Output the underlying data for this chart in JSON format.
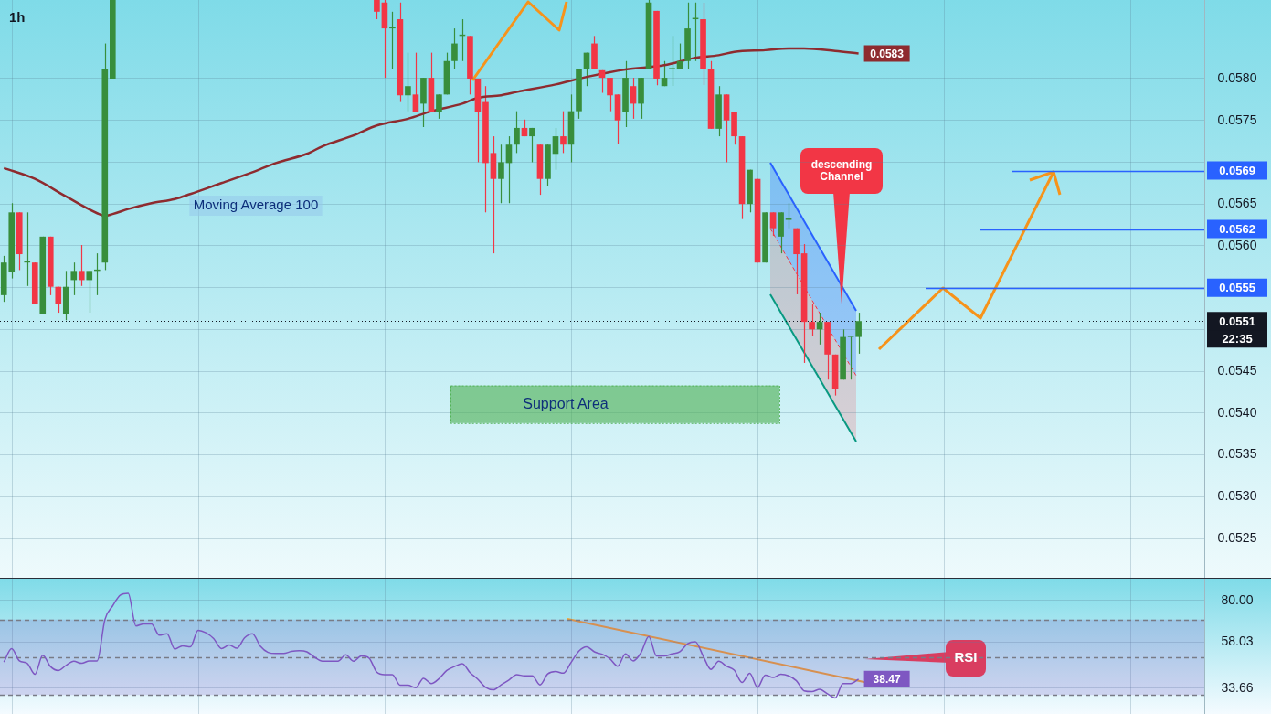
{
  "chart_data": [
    {
      "type": "candlestick",
      "title": "1h",
      "tick_labels": "y",
      "grid": true,
      "categories": [
        null,
        null,
        null,
        null,
        null,
        null,
        null,
        null,
        null,
        null,
        null,
        null,
        null,
        null,
        null,
        null,
        null,
        null,
        null,
        null,
        null,
        null,
        null,
        null,
        null,
        null,
        null,
        null,
        null,
        null,
        null,
        null,
        null,
        null,
        null,
        null,
        null,
        null,
        null,
        null,
        null,
        null,
        null,
        null,
        null,
        null,
        null,
        null,
        null,
        null,
        null,
        null,
        null,
        null,
        null,
        null,
        null,
        null,
        null,
        null,
        null,
        null,
        null,
        null,
        null,
        null,
        null,
        null,
        null,
        null,
        null,
        null,
        null,
        null,
        null,
        null,
        null,
        null,
        null,
        null,
        null,
        null,
        null,
        null,
        null,
        null,
        null,
        null,
        null,
        null,
        null,
        null,
        null,
        null,
        null,
        null,
        null,
        null,
        null,
        null,
        null,
        null,
        null,
        null,
        null,
        null,
        null,
        null,
        null,
        null,
        null,
        null,
        null,
        null,
        null,
        null,
        null,
        null,
        null,
        null,
        null,
        null,
        null,
        null,
        null,
        null,
        null,
        null,
        null,
        null,
        null,
        null,
        null,
        null,
        null,
        null,
        null,
        null,
        null,
        null,
        null,
        null,
        null,
        null,
        null,
        null,
        null,
        null,
        null,
        null,
        null,
        null,
        null,
        null,
        null
      ],
      "ohlc": [
        [
          0.05541,
          0.05588,
          0.05533,
          0.0558
        ],
        [
          0.05569,
          0.05651,
          0.05561,
          0.0564
        ],
        [
          0.0564,
          0.0564,
          0.05571,
          0.0559
        ],
        [
          0.0558,
          0.0564,
          0.05552,
          0.0558
        ],
        [
          0.0558,
          0.0558,
          0.0553,
          0.0553
        ],
        [
          0.05519,
          0.05611,
          0.05519,
          0.05611
        ],
        [
          0.05611,
          0.05611,
          0.05541,
          0.05551
        ],
        [
          0.05551,
          0.05551,
          0.0552,
          0.0553
        ],
        [
          0.05519,
          0.0557,
          0.05511,
          0.05551
        ],
        [
          0.05559,
          0.0558,
          0.05541,
          0.0557
        ],
        [
          0.0557,
          0.05601,
          0.05552,
          0.05559
        ],
        [
          0.05559,
          0.0557,
          0.0552,
          0.0557
        ],
        [
          0.0557,
          0.05591,
          0.05541,
          0.0557
        ],
        [
          0.0558,
          0.05842,
          0.05571,
          0.05811
        ],
        [
          0.058,
          0.05894,
          0.058,
          0.05894
        ],
        null,
        null,
        null,
        null,
        null,
        null,
        null,
        null,
        null,
        null,
        null,
        null,
        null,
        null,
        null,
        null,
        null,
        null,
        null,
        null,
        null,
        null,
        null,
        null,
        null,
        null,
        null,
        null,
        null,
        null,
        null,
        null,
        null,
        [
          0.05894,
          0.05894,
          0.05871,
          0.0588
        ],
        [
          0.05891,
          0.05894,
          0.05801,
          0.0586
        ],
        [
          0.0586,
          0.0588,
          0.05811,
          0.0586
        ],
        [
          0.05871,
          0.05891,
          0.05772,
          0.0578
        ],
        [
          0.0578,
          0.05831,
          0.05761,
          0.05791
        ],
        [
          0.05781,
          0.05831,
          0.0576,
          0.0576
        ],
        [
          0.0577,
          0.05801,
          0.05742,
          0.05801
        ],
        [
          0.05801,
          0.05831,
          0.0576,
          0.0576
        ],
        [
          0.0576,
          0.05781,
          0.05752,
          0.05781
        ],
        [
          0.05781,
          0.05831,
          0.05781,
          0.05821
        ],
        [
          0.05821,
          0.0586,
          0.05811,
          0.05842
        ],
        [
          0.05851,
          0.05871,
          0.05821,
          0.05851
        ],
        [
          0.05851,
          0.05851,
          0.05781,
          0.058
        ],
        [
          0.058,
          0.058,
          0.057,
          0.0576
        ],
        [
          0.05772,
          0.05791,
          0.0564,
          0.05699
        ],
        [
          0.05711,
          0.05731,
          0.05591,
          0.0568
        ],
        [
          0.0568,
          0.05721,
          0.05651,
          0.057
        ],
        [
          0.05699,
          0.05731,
          0.05651,
          0.05721
        ],
        [
          0.05721,
          0.05761,
          0.05711,
          0.05741
        ],
        [
          0.05741,
          0.05751,
          0.05731,
          0.05731
        ],
        [
          0.05731,
          0.05741,
          0.057,
          0.05741
        ],
        [
          0.05721,
          0.05721,
          0.05661,
          0.0568
        ],
        [
          0.0568,
          0.05721,
          0.05672,
          0.05721
        ],
        [
          0.0571,
          0.05741,
          0.05691,
          0.05731
        ],
        [
          0.05731,
          0.05761,
          0.05711,
          0.05721
        ],
        [
          0.05721,
          0.05781,
          0.057,
          0.05761
        ],
        [
          0.05761,
          0.05811,
          0.05752,
          0.05811
        ],
        [
          0.05811,
          0.05831,
          0.05791,
          0.05831
        ],
        [
          0.05842,
          0.05851,
          0.05811,
          0.05811
        ],
        [
          0.0581,
          0.0581,
          0.05783,
          0.05801
        ],
        [
          0.05801,
          0.05801,
          0.05761,
          0.0578
        ],
        [
          0.05781,
          0.05781,
          0.05722,
          0.0575
        ],
        [
          0.0576,
          0.05821,
          0.05742,
          0.05801
        ],
        [
          0.05791,
          0.05801,
          0.05752,
          0.0577
        ],
        [
          0.0577,
          0.05801,
          0.05752,
          0.05801
        ],
        [
          0.05811,
          0.05894,
          0.05811,
          0.05891
        ],
        [
          0.05881,
          0.05881,
          0.05792,
          0.058
        ],
        [
          0.05791,
          0.05821,
          0.05791,
          0.05801
        ],
        [
          0.05811,
          0.05851,
          0.05791,
          0.05811
        ],
        [
          0.05811,
          0.05842,
          0.05811,
          0.05821
        ],
        [
          0.05821,
          0.05891,
          0.05811,
          0.0586
        ],
        [
          0.05871,
          0.05891,
          0.05821,
          0.05871
        ],
        [
          0.05871,
          0.05891,
          0.05792,
          0.05811
        ],
        [
          0.05811,
          0.05821,
          0.0574,
          0.0574
        ],
        [
          0.0574,
          0.05791,
          0.05731,
          0.05781
        ],
        [
          0.05781,
          0.05781,
          0.057,
          0.0575
        ],
        [
          0.0576,
          0.0576,
          0.05721,
          0.05731
        ],
        [
          0.05731,
          0.05731,
          0.05632,
          0.0565
        ],
        [
          0.0565,
          0.05691,
          0.0564,
          0.05691
        ],
        [
          0.0568,
          0.0568,
          0.0558,
          0.0558
        ],
        [
          0.0558,
          0.0564,
          0.0558,
          0.0564
        ],
        [
          0.0564,
          0.0564,
          0.05612,
          0.05621
        ],
        [
          0.05611,
          0.0564,
          0.05591,
          0.0564
        ],
        [
          0.05631,
          0.05651,
          0.05621,
          0.05631
        ],
        [
          0.05621,
          0.05621,
          0.05542,
          0.0559
        ],
        [
          0.05591,
          0.05602,
          0.0546,
          0.05509
        ],
        [
          0.05509,
          0.05531,
          0.05492,
          0.055
        ],
        [
          0.055,
          0.0552,
          0.05482,
          0.05509
        ],
        [
          0.05509,
          0.05509,
          0.0544,
          0.0547
        ],
        [
          0.0547,
          0.0547,
          0.05421,
          0.05429
        ],
        [
          0.0544,
          0.055,
          0.0544,
          0.05491
        ],
        [
          0.05491,
          0.05491,
          0.0544,
          0.05491
        ],
        [
          0.05491,
          0.0552,
          0.05471,
          0.0551
        ],
        null,
        null,
        null,
        null,
        null,
        null,
        null,
        null,
        null,
        null,
        null,
        null,
        null,
        null,
        null,
        null,
        null,
        null,
        null,
        null,
        null,
        null,
        null,
        null,
        null,
        null,
        null,
        null,
        null,
        null,
        null,
        null,
        null,
        null,
        null,
        null,
        null,
        null,
        null,
        null,
        null,
        null,
        null,
        null
      ],
      "series": [
        {
          "type": "line",
          "name": "Moving Average 100",
          "color": "#8e2b2f",
          "values": [
            0.05693,
            null,
            null,
            null,
            0.0568,
            null,
            null,
            null,
            0.05659,
            null,
            null,
            null,
            0.05639,
            0.05636,
            0.05638,
            null,
            0.05644,
            null,
            null,
            0.05651,
            null,
            null,
            0.05656,
            null,
            0.05662,
            null,
            null,
            null,
            0.05675,
            null,
            null,
            null,
            0.05688,
            null,
            null,
            0.05699,
            null,
            null,
            null,
            0.0571,
            null,
            0.05719,
            null,
            null,
            null,
            0.05732,
            null,
            null,
            0.05744,
            null,
            null,
            null,
            0.05752,
            null,
            null,
            0.05761,
            null,
            null,
            null,
            0.0577,
            null,
            0.05777,
            null,
            null,
            0.0578,
            null,
            0.05784,
            null,
            null,
            null,
            null,
            0.05793,
            null,
            null,
            null,
            0.05802,
            null,
            null,
            null,
            null,
            0.05811,
            null,
            null,
            null,
            null,
            0.05816,
            null,
            null,
            null,
            0.05825,
            null,
            null,
            0.05828,
            null,
            0.05832,
            null,
            null,
            null,
            0.05834,
            null,
            null,
            0.05836,
            null,
            0.05836,
            null,
            null,
            null,
            0.05833,
            null,
            null,
            0.0583,
            null,
            null,
            null,
            null,
            null,
            null,
            null,
            null,
            null,
            null,
            null,
            null,
            null,
            null,
            null,
            null,
            null,
            null,
            null,
            null,
            null,
            null,
            null,
            null,
            null,
            null,
            null,
            null,
            null,
            null,
            null,
            null,
            null,
            null,
            null,
            null,
            null,
            null,
            null,
            null,
            null,
            null,
            null,
            null
          ],
          "value_labels": [
            null,
            null,
            null,
            null,
            null,
            null,
            null,
            null,
            null,
            null,
            null,
            null,
            null,
            null,
            null,
            null,
            null,
            null,
            null,
            null,
            null,
            null,
            null,
            null,
            null,
            null,
            null,
            null,
            null,
            null,
            null,
            null,
            null,
            null,
            null,
            null,
            null,
            null,
            null,
            null,
            null,
            null,
            null,
            null,
            null,
            null,
            null,
            null,
            null,
            null,
            null,
            null,
            null,
            null,
            null,
            null,
            null,
            null,
            null,
            null,
            null,
            null,
            null,
            null,
            null,
            null,
            null,
            null,
            null,
            null,
            null,
            null,
            null,
            null,
            null,
            null,
            null,
            null,
            null,
            null,
            null,
            null,
            null,
            null,
            null,
            null,
            null,
            null,
            null,
            null,
            null,
            null,
            null,
            null,
            null,
            null,
            null,
            null,
            null,
            null,
            null,
            null,
            null,
            null,
            null,
            null,
            null,
            null,
            null,
            null,
            "0.0583",
            null,
            null,
            null,
            null,
            null,
            null,
            null,
            null,
            null,
            null,
            null,
            null,
            null,
            null,
            null,
            null,
            null,
            null,
            null,
            null,
            null,
            null,
            null,
            null,
            null,
            null,
            null,
            null,
            null,
            null,
            null,
            null,
            null,
            null,
            null,
            null,
            null,
            null,
            null,
            null,
            null,
            null,
            null,
            null
          ]
        }
      ],
      "ylim": [
        0.05203,
        0.05894
      ],
      "yticks": [
        0.0525,
        {
          "value": 0.053,
          "label": "0.0530"
        },
        0.0535,
        {
          "value": 0.054,
          "label": "0.0540"
        },
        0.0545,
        {
          "value": 0.055,
          "label": null
        },
        {
          "value": 0.0555,
          "label": null
        },
        {
          "value": 0.056,
          "label": "0.0560"
        },
        0.0565,
        {
          "value": 0.057,
          "label": null
        },
        0.0575,
        {
          "value": 0.058,
          "label": "0.0580"
        },
        {
          "value": 0.0585,
          "label": null
        }
      ],
      "ref_lines": [
        {
          "axis": "y",
          "value": 0.0569,
          "label": "0.0569",
          "color": "#2962ff"
        },
        {
          "axis": "y",
          "value": 0.0562,
          "label": "0.0562",
          "color": "#2962ff"
        },
        {
          "axis": "y",
          "value": 0.0555,
          "label": "0.0555",
          "color": "#2962ff"
        },
        {
          "axis": "y",
          "value": 0.0551,
          "label": "0.0551",
          "color": "#131722",
          "line_style": "dotted"
        }
      ],
      "bands": [
        {
          "axis": "y",
          "from": 0.05388,
          "to": 0.05433,
          "label": "Support Area",
          "color": "#4caf50"
        }
      ],
      "annotations": [
        "descending Channel",
        "22:35"
      ]
    },
    {
      "type": "line",
      "tick_labels": "y",
      "grid": true,
      "categories": [
        null,
        null,
        null,
        null,
        null,
        null,
        null,
        null,
        null,
        null,
        null,
        null,
        null,
        null,
        null,
        null,
        null,
        null,
        null,
        null,
        null,
        null,
        null,
        null,
        null,
        null,
        null,
        null,
        null,
        null,
        null,
        null,
        null,
        null,
        null,
        null,
        null,
        null,
        null,
        null,
        null,
        null,
        null,
        null,
        null,
        null,
        null,
        null,
        null,
        null,
        null,
        null,
        null,
        null,
        null,
        null,
        null,
        null,
        null,
        null,
        null,
        null,
        null,
        null,
        null,
        null,
        null,
        null,
        null,
        null,
        null,
        null,
        null,
        null,
        null,
        null,
        null,
        null,
        null,
        null,
        null,
        null,
        null,
        null,
        null,
        null,
        null,
        null,
        null,
        null,
        null,
        null,
        null,
        null,
        null,
        null,
        null,
        null,
        null,
        null,
        null,
        null,
        null,
        null,
        null,
        null,
        null,
        null,
        null,
        null,
        null,
        null,
        null,
        null,
        null,
        null,
        null,
        null,
        null,
        null,
        null,
        null,
        null,
        null,
        null,
        null,
        null,
        null,
        null,
        null,
        null,
        null,
        null,
        null,
        null,
        null,
        null,
        null,
        null,
        null,
        null,
        null,
        null,
        null,
        null,
        null,
        null,
        null,
        null,
        null,
        null,
        null,
        null,
        null,
        null
      ],
      "series": [
        {
          "name": "RSI",
          "color": "#7e57c2",
          "values": [
            47.5,
            54.6,
            48.1,
            46.8,
            41.0,
            51.1,
            45.1,
            43.0,
            45.7,
            47.9,
            46.8,
            48.1,
            48.1,
            69.9,
            77.2,
            83.0,
            83.8,
            66.6,
            67.7,
            67.7,
            61.7,
            62.5,
            54.3,
            56.1,
            55.6,
            64.3,
            63.0,
            59.9,
            54.6,
            56.5,
            54.8,
            60.4,
            62.5,
            55.9,
            52.6,
            52.0,
            52.0,
            53.1,
            53.5,
            52.9,
            50.0,
            47.9,
            47.9,
            47.9,
            51.3,
            47.9,
            50.7,
            49.6,
            42.1,
            40.8,
            40.8,
            35.2,
            35.2,
            33.9,
            38.9,
            36.1,
            38.7,
            43.0,
            45.1,
            46.6,
            41.9,
            38.4,
            34.1,
            32.8,
            35.4,
            38.0,
            40.8,
            40.2,
            40.2,
            35.4,
            41.2,
            42.5,
            41.6,
            47.3,
            53.3,
            55.6,
            52.9,
            51.6,
            49.2,
            45.3,
            51.8,
            48.1,
            52.4,
            61.0,
            50.7,
            50.7,
            51.8,
            52.9,
            57.2,
            58.2,
            50.7,
            43.6,
            47.9,
            45.3,
            43.2,
            36.7,
            41.5,
            34.1,
            40.6,
            39.3,
            41.0,
            40.2,
            37.6,
            32.2,
            31.8,
            33.1,
            30.7,
            28.5,
            36.1,
            36.1,
            38.47,
            null,
            null,
            null,
            null,
            null,
            null,
            null,
            null,
            null,
            null,
            null,
            null,
            null,
            null,
            null,
            null,
            null,
            null,
            null,
            null,
            null,
            null,
            null,
            null,
            null,
            null,
            null,
            null,
            null,
            null,
            null,
            null,
            null,
            null,
            null,
            null,
            null,
            null,
            null,
            null,
            null,
            null,
            null,
            null
          ],
          "value_labels": [
            null,
            null,
            null,
            null,
            null,
            null,
            null,
            null,
            null,
            null,
            null,
            null,
            null,
            null,
            null,
            null,
            null,
            null,
            null,
            null,
            null,
            null,
            null,
            null,
            null,
            null,
            null,
            null,
            null,
            null,
            null,
            null,
            null,
            null,
            null,
            null,
            null,
            null,
            null,
            null,
            null,
            null,
            null,
            null,
            null,
            null,
            null,
            null,
            null,
            null,
            null,
            null,
            null,
            null,
            null,
            null,
            null,
            null,
            null,
            null,
            null,
            null,
            null,
            null,
            null,
            null,
            null,
            null,
            null,
            null,
            null,
            null,
            null,
            null,
            null,
            null,
            null,
            null,
            null,
            null,
            null,
            null,
            null,
            null,
            null,
            null,
            null,
            null,
            null,
            null,
            null,
            null,
            null,
            null,
            null,
            null,
            null,
            null,
            null,
            null,
            null,
            null,
            null,
            null,
            null,
            null,
            null,
            null,
            null,
            null,
            "38.47",
            null,
            null,
            null,
            null,
            null,
            null,
            null,
            null,
            null,
            null,
            null,
            null,
            null,
            null,
            null,
            null,
            null,
            null,
            null,
            null,
            null,
            null,
            null,
            null,
            null,
            null,
            null,
            null,
            null,
            null,
            null,
            null,
            null,
            null,
            null,
            null,
            null,
            null,
            null,
            null,
            null,
            null,
            null,
            null
          ]
        }
      ],
      "ylim": [
        20,
        91.6
      ],
      "yticks": [
        {
          "value": 33.66,
          "label": "33.66"
        },
        {
          "value": 58.03,
          "label": "58.03"
        },
        {
          "value": 80,
          "label": "80.00"
        }
      ],
      "ref_lines": [
        {
          "axis": "y",
          "value": 70,
          "color": "#787b86",
          "line_style": "dashed"
        },
        {
          "axis": "y",
          "value": 50,
          "color": "#787b86",
          "line_style": "dashed"
        },
        {
          "axis": "y",
          "value": 30,
          "color": "#787b86",
          "line_style": "dashed"
        }
      ],
      "bands": [
        {
          "axis": "y",
          "from": 30,
          "to": 70,
          "color": "#7e57c2"
        }
      ]
    }
  ]
}
